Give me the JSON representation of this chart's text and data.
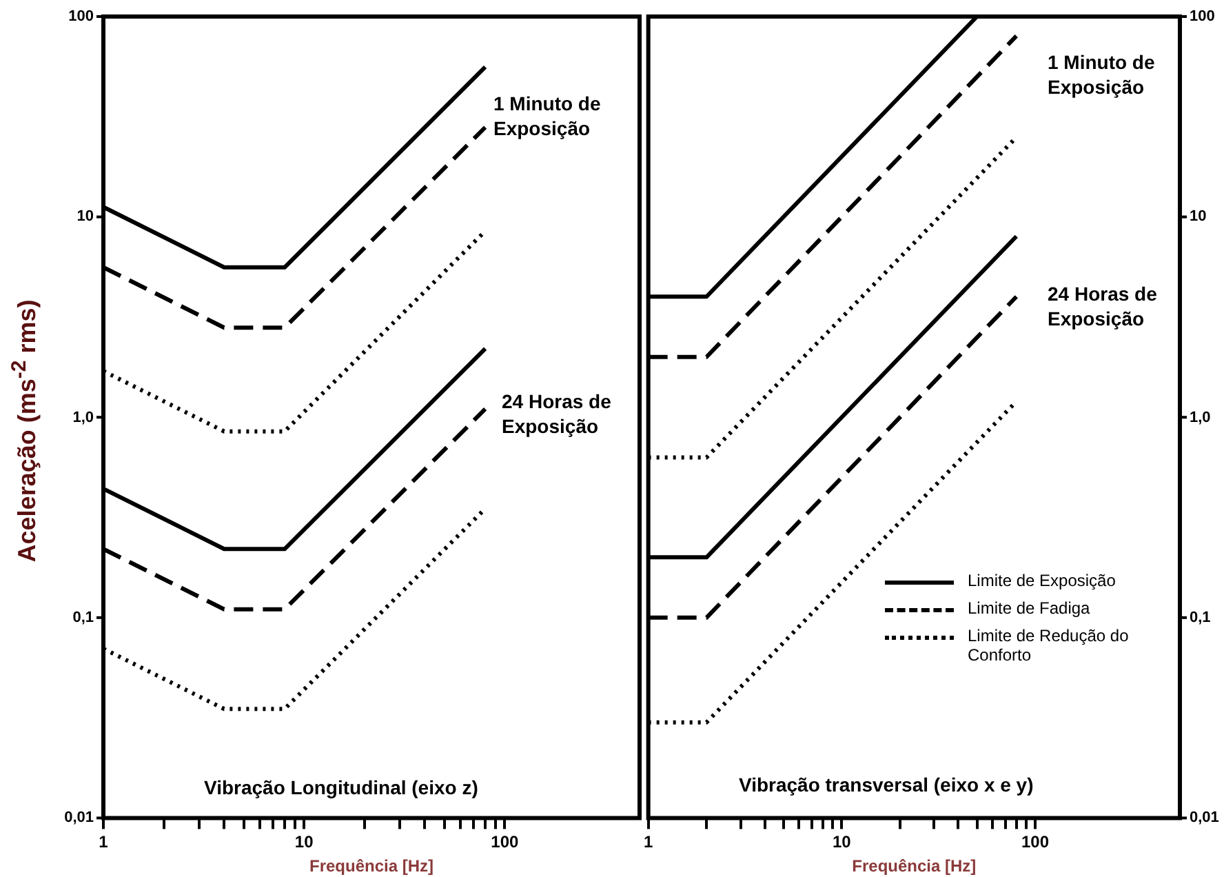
{
  "chart_data": [
    {
      "type": "line",
      "xlabel": "Frequência [Hz]",
      "ylabel": "Aceleração (ms$^{-2}$ rms)",
      "annotations": [
        "1 Minuto de Exposição",
        "24 Horas de Exposição",
        "Vibração Longitudinal (eixo z)"
      ],
      "log": "xy",
      "grid": false,
      "legend": false,
      "marker": "none",
      "xlim": [
        1,
        470
      ],
      "ylim": [
        0.01,
        100
      ],
      "xticks": [
        1,
        {
          "value": 2,
          "label": null
        },
        {
          "value": 3,
          "label": null
        },
        {
          "value": 4,
          "label": null
        },
        {
          "value": 5,
          "label": null
        },
        {
          "value": 6,
          "label": null
        },
        {
          "value": 7,
          "label": null
        },
        {
          "value": 8,
          "label": null
        },
        {
          "value": 9,
          "label": null
        },
        10,
        {
          "value": 20,
          "label": null
        },
        {
          "value": 30,
          "label": null
        },
        {
          "value": 40,
          "label": null
        },
        {
          "value": 50,
          "label": null
        },
        {
          "value": 60,
          "label": null
        },
        {
          "value": 70,
          "label": null
        },
        {
          "value": 80,
          "label": null
        },
        {
          "value": 90,
          "label": null
        },
        100
      ],
      "yticks": [
        {
          "value": 0.01,
          "label": "0,01"
        },
        {
          "value": 0.1,
          "label": "0,1"
        },
        {
          "value": 1,
          "label": "1,0"
        },
        {
          "value": 10,
          "label": "10"
        },
        {
          "value": 100,
          "label": "100"
        }
      ],
      "series": [
        {
          "color": "#000000",
          "line_style": "solid",
          "x": [
            1,
            4,
            8,
            80
          ],
          "values": [
            11.2,
            5.6,
            5.6,
            56
          ]
        },
        {
          "color": "#000000",
          "line_style": "dashed",
          "x": [
            1,
            4,
            8,
            80
          ],
          "values": [
            5.6,
            2.8,
            2.8,
            28
          ]
        },
        {
          "color": "#000000",
          "line_style": "dotted",
          "x": [
            1,
            4,
            8,
            80
          ],
          "values": [
            1.7,
            0.85,
            0.85,
            8.5
          ]
        },
        {
          "color": "#000000",
          "line_style": "solid",
          "x": [
            1,
            4,
            8,
            80
          ],
          "values": [
            0.44,
            0.22,
            0.22,
            2.2
          ]
        },
        {
          "color": "#000000",
          "line_style": "dashed",
          "x": [
            1,
            4,
            8,
            80
          ],
          "values": [
            0.22,
            0.11,
            0.11,
            1.1
          ]
        },
        {
          "color": "#000000",
          "line_style": "dotted",
          "x": [
            1,
            4,
            8,
            80
          ],
          "values": [
            0.07,
            0.035,
            0.035,
            0.35
          ]
        }
      ]
    },
    {
      "type": "line",
      "xlabel": "Frequência [Hz]",
      "annotations": [
        "1 Minuto de Exposição",
        "24 Horas de Exposição",
        "Vibração transversal (eixo x e y)"
      ],
      "log": "xy",
      "grid": false,
      "legend": "bottom right",
      "marker": "none",
      "xlim": [
        1,
        560
      ],
      "ylim": [
        0.01,
        100
      ],
      "xticks": [
        1,
        {
          "value": 2,
          "label": null
        },
        {
          "value": 3,
          "label": null
        },
        {
          "value": 4,
          "label": null
        },
        {
          "value": 5,
          "label": null
        },
        {
          "value": 6,
          "label": null
        },
        {
          "value": 7,
          "label": null
        },
        {
          "value": 8,
          "label": null
        },
        {
          "value": 9,
          "label": null
        },
        10,
        {
          "value": 20,
          "label": null
        },
        {
          "value": 30,
          "label": null
        },
        {
          "value": 40,
          "label": null
        },
        {
          "value": 50,
          "label": null
        },
        {
          "value": 60,
          "label": null
        },
        {
          "value": 70,
          "label": null
        },
        {
          "value": 80,
          "label": null
        },
        {
          "value": 90,
          "label": null
        },
        100
      ],
      "yticks": [
        {
          "value": 0.01,
          "label": "0,01"
        },
        {
          "value": 0.1,
          "label": "0,1"
        },
        {
          "value": 1,
          "label": "1,0"
        },
        {
          "value": 10,
          "label": "10"
        },
        {
          "value": 100,
          "label": "100"
        }
      ],
      "series": [
        {
          "name": "Limite de Exposição",
          "color": "#000000",
          "line_style": "solid",
          "x": [
            1,
            2,
            50
          ],
          "values": [
            4,
            4,
            100
          ]
        },
        {
          "name": "Limite de Fadiga",
          "color": "#000000",
          "line_style": "dashed",
          "x": [
            1,
            2,
            80
          ],
          "values": [
            2,
            2,
            80
          ]
        },
        {
          "name": "Limite de Redução do Conforto",
          "color": "#000000",
          "line_style": "dotted",
          "x": [
            1,
            2,
            80
          ],
          "values": [
            0.63,
            0.63,
            25
          ]
        },
        {
          "color": "#000000",
          "line_style": "solid",
          "x": [
            1,
            2,
            80
          ],
          "values": [
            0.2,
            0.2,
            8
          ]
        },
        {
          "color": "#000000",
          "line_style": "dashed",
          "x": [
            1,
            2,
            80
          ],
          "values": [
            0.1,
            0.1,
            4
          ]
        },
        {
          "color": "#000000",
          "line_style": "dotted",
          "x": [
            1,
            2,
            80
          ],
          "values": [
            0.03,
            0.03,
            1.2
          ]
        }
      ]
    }
  ]
}
